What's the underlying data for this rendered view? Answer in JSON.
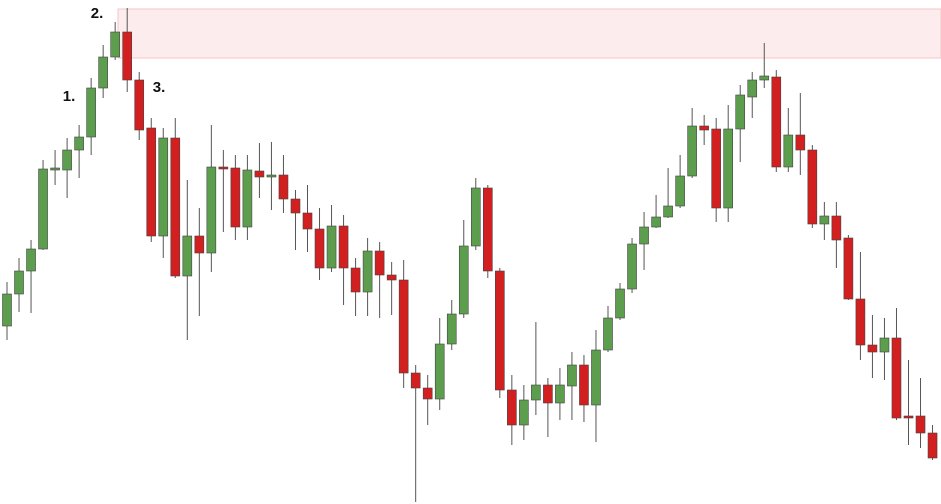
{
  "chart_data": {
    "type": "candlestick",
    "ylim": [
      0,
      504
    ],
    "up_color": "#5c9e4e",
    "down_color": "#d21f1f",
    "zone": {
      "from": 446,
      "to": 495,
      "color": "#fdeced"
    },
    "annotations": [
      "1.",
      "2.",
      "3."
    ],
    "open": [
      178,
      210,
      233,
      255,
      334,
      334,
      354,
      367,
      416,
      447,
      472,
      424,
      376,
      268,
      366,
      228,
      268,
      251,
      337,
      336,
      277,
      333,
      327,
      329,
      305,
      291,
      275,
      236,
      278,
      236,
      212,
      253,
      229,
      224,
      131,
      116,
      105,
      160,
      190,
      258,
      316,
      233,
      114,
      79,
      104,
      119,
      101,
      118,
      139,
      99,
      154,
      186,
      215,
      260,
      277,
      287,
      298,
      328,
      378,
      375,
      296,
      375,
      407,
      424,
      427,
      337,
      369,
      354,
      280,
      288,
      266,
      205,
      159,
      152,
      166,
      88,
      88,
      71
    ],
    "high": [
      222,
      246,
      264,
      344,
      354,
      366,
      379,
      426,
      459,
      482,
      496,
      432,
      386,
      376,
      386,
      324,
      296,
      379,
      354,
      349,
      349,
      361,
      362,
      349,
      314,
      319,
      296,
      299,
      289,
      246,
      266,
      262,
      242,
      244,
      139,
      129,
      186,
      204,
      284,
      326,
      319,
      236,
      129,
      119,
      182,
      126,
      136,
      152,
      149,
      174,
      198,
      221,
      266,
      292,
      309,
      336,
      349,
      396,
      389,
      386,
      399,
      419,
      432,
      461,
      434,
      396,
      411,
      359,
      302,
      302,
      269,
      252,
      189,
      186,
      196,
      144,
      126,
      79
    ],
    "low": [
      164,
      192,
      191,
      254,
      319,
      306,
      326,
      349,
      406,
      444,
      412,
      364,
      262,
      246,
      226,
      164,
      188,
      232,
      272,
      264,
      264,
      306,
      294,
      291,
      254,
      252,
      224,
      232,
      199,
      188,
      188,
      186,
      189,
      116,
      2,
      79,
      94,
      154,
      186,
      254,
      226,
      106,
      59,
      64,
      89,
      67,
      84,
      84,
      82,
      62,
      152,
      184,
      211,
      234,
      276,
      286,
      296,
      326,
      359,
      282,
      282,
      342,
      386,
      416,
      332,
      332,
      329,
      276,
      264,
      236,
      204,
      144,
      126,
      124,
      84,
      59,
      56,
      44
    ],
    "close": [
      210,
      233,
      255,
      335,
      336,
      354,
      367,
      416,
      447,
      472,
      424,
      374,
      268,
      366,
      228,
      268,
      251,
      337,
      335,
      277,
      334,
      327,
      329,
      305,
      291,
      275,
      236,
      278,
      236,
      212,
      253,
      229,
      224,
      131,
      116,
      105,
      160,
      190,
      258,
      316,
      233,
      114,
      79,
      104,
      119,
      101,
      119,
      139,
      99,
      154,
      186,
      215,
      260,
      277,
      287,
      298,
      328,
      378,
      374,
      296,
      375,
      409,
      424,
      428,
      337,
      369,
      354,
      280,
      288,
      264,
      205,
      159,
      152,
      166,
      86,
      86,
      71,
      46
    ]
  }
}
